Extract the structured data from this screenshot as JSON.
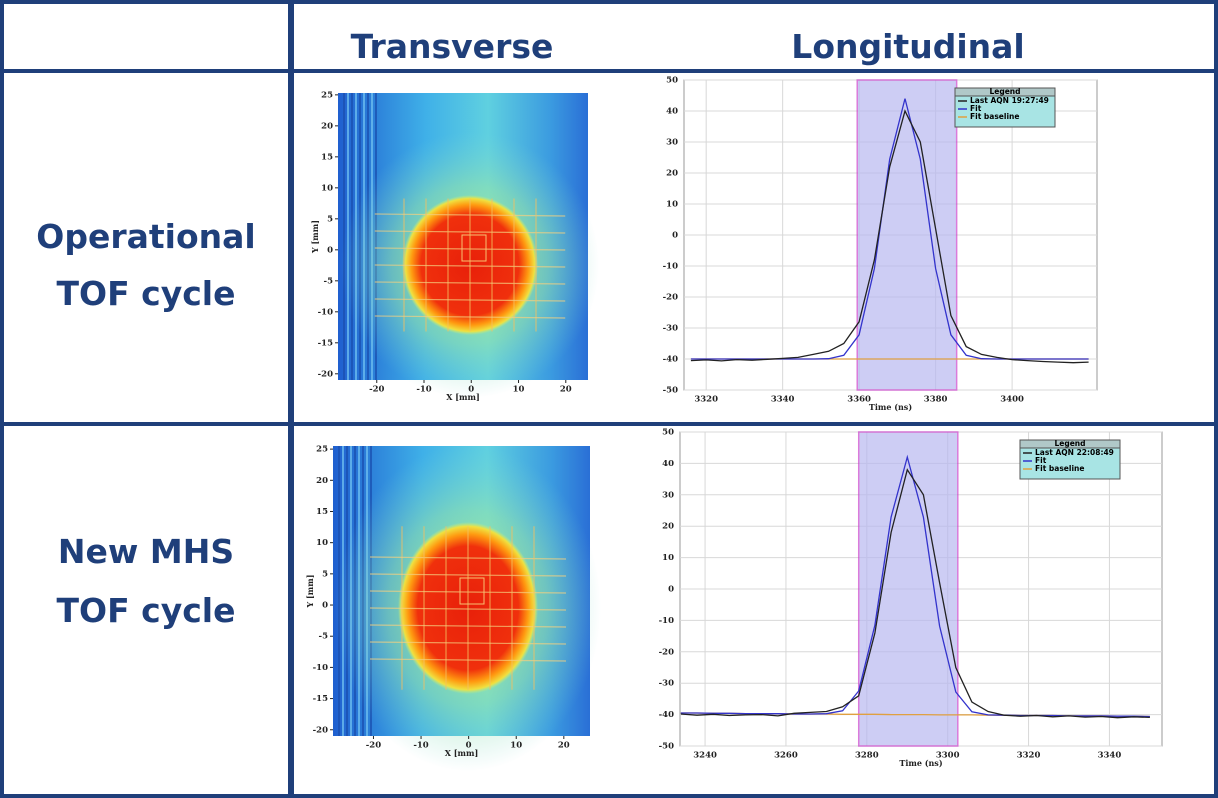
{
  "table": {
    "columns": [
      "Transverse",
      "Longitudinal"
    ],
    "rows": [
      [
        "Operational",
        "TOF cycle"
      ],
      [
        "New MHS",
        "TOF cycle"
      ]
    ]
  },
  "chart_data": [
    {
      "type": "heatmap",
      "xlabel": "X [mm]",
      "ylabel": "Y [mm]",
      "xlim": [
        -28.2,
        24.7
      ],
      "ylim": [
        -21,
        25.3
      ],
      "xticks": [
        -20,
        -10,
        0,
        10,
        20
      ],
      "yticks": [
        25,
        20,
        15,
        10,
        5,
        0,
        -5,
        -10,
        -15,
        -20
      ]
    },
    {
      "type": "line",
      "xlabel": "Time (ns)",
      "legend_title": "Legend",
      "legend": "upper right",
      "grid": true,
      "xlim": [
        3314.2,
        3422.2
      ],
      "ylim": [
        -50,
        50
      ],
      "xticks": [
        3320,
        3340,
        3360,
        3380,
        3400
      ],
      "yticks": [
        50,
        40,
        30,
        20,
        10,
        0,
        -10,
        -20,
        -30,
        -40,
        -50
      ],
      "highlight": [
        3359.5,
        3385.5
      ],
      "x": [
        3316,
        3320,
        3324,
        3328,
        3332,
        3336,
        3340,
        3344,
        3348,
        3352,
        3356,
        3360,
        3364,
        3368,
        3372,
        3376,
        3380,
        3384,
        3388,
        3392,
        3396,
        3400,
        3404,
        3408,
        3412,
        3416,
        3420
      ],
      "series": [
        {
          "name": "Last AQN 19:27:49",
          "color": "#222222",
          "values": [
            -40.5,
            -40.3,
            -40.6,
            -40.2,
            -40.4,
            -40.1,
            -39.8,
            -39.5,
            -38.5,
            -37.5,
            -35,
            -28,
            -8,
            22,
            40,
            30,
            2,
            -26,
            -36,
            -38.5,
            -39.5,
            -40.2,
            -40.5,
            -40.8,
            -41,
            -41.2,
            -41
          ]
        },
        {
          "name": "Fit",
          "color": "#3333cc",
          "values": [
            -40,
            -40,
            -40,
            -40,
            -40,
            -40,
            -40,
            -40,
            -40,
            -39.9,
            -38.8,
            -32.2,
            -10.8,
            24.5,
            44,
            24.5,
            -10.8,
            -32.2,
            -38.8,
            -39.9,
            -40,
            -40,
            -40,
            -40,
            -40,
            -40,
            -40
          ]
        },
        {
          "name": "Fit baseline",
          "color": "#e0a040",
          "values": [
            -40,
            -40,
            -40,
            -40,
            -40,
            -40,
            -40,
            -40,
            -40,
            -40,
            -40,
            -40,
            -40,
            -40,
            -40,
            -40,
            -40,
            -40,
            -40,
            -40,
            -40,
            -40,
            -40,
            -40,
            -40,
            -40,
            -40
          ]
        }
      ]
    },
    {
      "type": "heatmap",
      "xlabel": "X [mm]",
      "ylabel": "Y [mm]",
      "xlim": [
        -28.5,
        25.5
      ],
      "ylim": [
        -21,
        25.5
      ],
      "xticks": [
        -20,
        -10,
        0,
        10,
        20
      ],
      "yticks": [
        25,
        20,
        15,
        10,
        5,
        0,
        -5,
        -10,
        -15,
        -20
      ]
    },
    {
      "type": "line",
      "xlabel": "Time (ns)",
      "legend_title": "Legend",
      "legend": "upper right",
      "grid": true,
      "xlim": [
        3233.8,
        3353
      ],
      "ylim": [
        -50,
        50
      ],
      "xticks": [
        3240,
        3260,
        3280,
        3300,
        3320,
        3340
      ],
      "yticks": [
        50,
        40,
        30,
        20,
        10,
        0,
        -10,
        -20,
        -30,
        -40,
        -50
      ],
      "highlight": [
        3278,
        3302.5
      ],
      "x": [
        3234,
        3238,
        3242,
        3246,
        3250,
        3254,
        3258,
        3262,
        3266,
        3270,
        3274,
        3278,
        3282,
        3286,
        3290,
        3294,
        3298,
        3302,
        3306,
        3310,
        3314,
        3318,
        3322,
        3326,
        3330,
        3334,
        3338,
        3342,
        3346,
        3350
      ],
      "series": [
        {
          "name": "Last AQN 22:08:49",
          "color": "#222222",
          "values": [
            -39.8,
            -40.2,
            -39.9,
            -40.3,
            -40.1,
            -40,
            -40.4,
            -39.6,
            -39.3,
            -39,
            -37.5,
            -34,
            -14,
            18,
            38,
            30,
            2,
            -25,
            -36,
            -39,
            -40.2,
            -40.5,
            -40.3,
            -40.7,
            -40.4,
            -40.8,
            -40.6,
            -41,
            -40.7,
            -40.9
          ]
        },
        {
          "name": "Fit",
          "color": "#3333cc",
          "values": [
            -39.5,
            -39.5,
            -39.6,
            -39.6,
            -39.7,
            -39.7,
            -39.7,
            -39.8,
            -39.8,
            -39.7,
            -38.8,
            -32.5,
            -11.5,
            22.9,
            42,
            22.9,
            -11.8,
            -32.8,
            -39.1,
            -40.1,
            -40.2,
            -40.3,
            -40.3,
            -40.3,
            -40.4,
            -40.4,
            -40.4,
            -40.5,
            -40.5,
            -40.6
          ]
        },
        {
          "name": "Fit baseline",
          "color": "#e0a040",
          "values": [
            -39.5,
            -39.5,
            -39.6,
            -39.6,
            -39.7,
            -39.7,
            -39.7,
            -39.8,
            -39.8,
            -39.8,
            -39.9,
            -39.9,
            -39.9,
            -40,
            -40,
            -40,
            -40.1,
            -40.1,
            -40.1,
            -40.2,
            -40.2,
            -40.3,
            -40.3,
            -40.3,
            -40.4,
            -40.4,
            -40.4,
            -40.5,
            -40.5,
            -40.6
          ]
        }
      ]
    }
  ]
}
